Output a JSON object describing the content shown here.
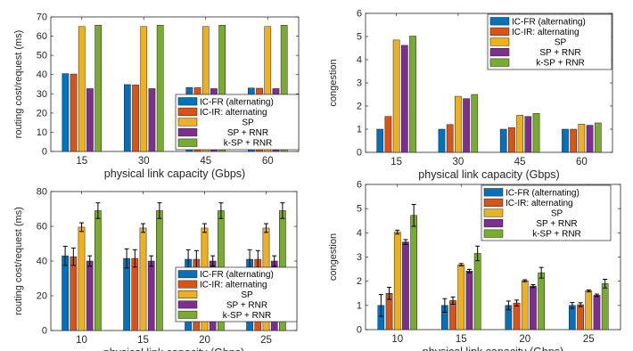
{
  "chart_data": [
    {
      "type": "bar",
      "title": "",
      "xlabel": "physical link capacity (Gbps)",
      "ylabel": "routing cost/request (ms)",
      "categories": [
        "15",
        "30",
        "45",
        "60"
      ],
      "ylim": [
        0,
        70
      ],
      "yticks": [
        0,
        10,
        20,
        30,
        40,
        50,
        60,
        70
      ],
      "grid": false,
      "error_bars": false,
      "legend_position": "bottom-right",
      "series": [
        {
          "name": "IC-FR (alternating)",
          "values": [
            40.5,
            34.8,
            33.3,
            33.0
          ]
        },
        {
          "name": "IC-IR: alternating",
          "values": [
            40.3,
            34.6,
            33.2,
            32.9
          ]
        },
        {
          "name": "SP",
          "values": [
            65.0,
            65.0,
            65.0,
            65.0
          ]
        },
        {
          "name": "SP + RNR",
          "values": [
            32.7,
            32.7,
            32.7,
            32.7
          ]
        },
        {
          "name": "k-SP + RNR",
          "values": [
            65.7,
            65.7,
            65.7,
            65.7
          ]
        }
      ]
    },
    {
      "type": "bar",
      "title": "",
      "xlabel": "physical link capacity (Gbps)",
      "ylabel": "congestion",
      "categories": [
        "15",
        "30",
        "45",
        "60"
      ],
      "ylim": [
        0,
        6
      ],
      "yticks": [
        0,
        1,
        2,
        3,
        4,
        5,
        6
      ],
      "grid": false,
      "error_bars": false,
      "legend_position": "top-right",
      "series": [
        {
          "name": "IC-FR (alternating)",
          "values": [
            1.0,
            1.0,
            1.0,
            1.0
          ]
        },
        {
          "name": "IC-IR: alternating",
          "values": [
            1.55,
            1.2,
            1.07,
            1.0
          ]
        },
        {
          "name": "SP",
          "values": [
            4.85,
            2.42,
            1.6,
            1.22
          ]
        },
        {
          "name": "SP + RNR",
          "values": [
            4.62,
            2.32,
            1.55,
            1.17
          ]
        },
        {
          "name": "k-SP + RNR",
          "values": [
            5.02,
            2.5,
            1.68,
            1.27
          ]
        }
      ]
    },
    {
      "type": "bar",
      "title": "",
      "xlabel": "physical link capacity (Gbps)",
      "ylabel": "routing cost/request (ms)",
      "categories": [
        "10",
        "15",
        "20",
        "25"
      ],
      "ylim": [
        0,
        80
      ],
      "yticks": [
        0,
        20,
        40,
        60,
        80
      ],
      "grid": false,
      "error_bars": true,
      "legend_position": "bottom-right",
      "series": [
        {
          "name": "IC-FR (alternating)",
          "values": [
            43,
            41.5,
            41,
            41
          ],
          "errors": [
            5.5,
            5.5,
            5.5,
            5.5
          ]
        },
        {
          "name": "IC-IR: alternating",
          "values": [
            42.5,
            41.5,
            41,
            41
          ],
          "errors": [
            5.0,
            5.0,
            5.0,
            5.0
          ]
        },
        {
          "name": "SP",
          "values": [
            59.5,
            59,
            59,
            59
          ],
          "errors": [
            2.5,
            2.5,
            2.5,
            2.5
          ]
        },
        {
          "name": "SP + RNR",
          "values": [
            40,
            40,
            40,
            40
          ],
          "errors": [
            3.0,
            3.0,
            3.0,
            3.0
          ]
        },
        {
          "name": "k-SP + RNR",
          "values": [
            69,
            69,
            69,
            69
          ],
          "errors": [
            4.5,
            4.5,
            4.5,
            4.5
          ]
        }
      ]
    },
    {
      "type": "bar",
      "title": "",
      "xlabel": "physical link capacity (Gbps)",
      "ylabel": "congestion",
      "categories": [
        "10",
        "15",
        "20",
        "25"
      ],
      "ylim": [
        0,
        6
      ],
      "yticks": [
        0,
        1,
        2,
        3,
        4,
        5,
        6
      ],
      "grid": false,
      "error_bars": true,
      "legend_position": "top-right",
      "series": [
        {
          "name": "IC-FR (alternating)",
          "values": [
            1.0,
            1.0,
            1.0,
            1.0
          ],
          "errors": [
            0.45,
            0.28,
            0.18,
            0.12
          ]
        },
        {
          "name": "IC-IR: alternating",
          "values": [
            1.5,
            1.2,
            1.1,
            1.03
          ],
          "errors": [
            0.25,
            0.15,
            0.12,
            0.08
          ]
        },
        {
          "name": "SP",
          "values": [
            4.03,
            2.68,
            2.02,
            1.6
          ],
          "errors": [
            0.08,
            0.05,
            0.04,
            0.04
          ]
        },
        {
          "name": "SP + RNR",
          "values": [
            3.62,
            2.42,
            1.8,
            1.42
          ],
          "errors": [
            0.1,
            0.07,
            0.06,
            0.05
          ]
        },
        {
          "name": "k-SP + RNR",
          "values": [
            4.72,
            3.15,
            2.35,
            1.9
          ],
          "errors": [
            0.45,
            0.3,
            0.22,
            0.18
          ]
        }
      ]
    }
  ],
  "colors": {
    "IC-FR (alternating)": "#0072BD",
    "IC-IR: alternating": "#D95319",
    "SP": "#EDB120",
    "SP + RNR": "#7E2F8E",
    "k-SP + RNR": "#77AC30"
  }
}
